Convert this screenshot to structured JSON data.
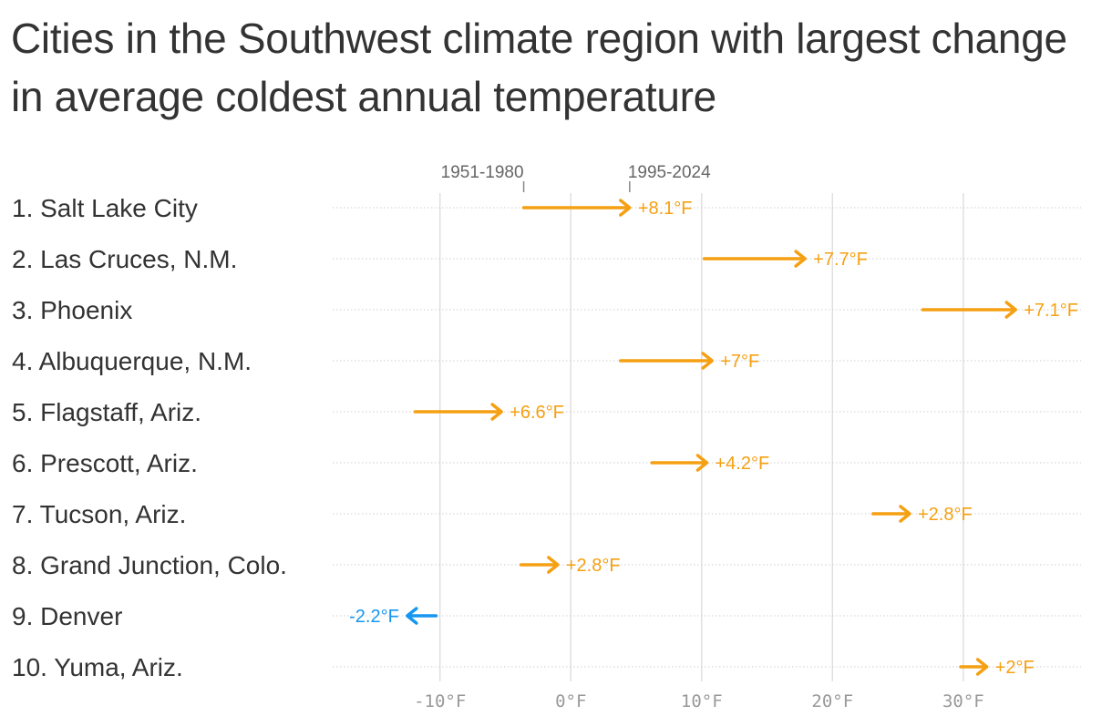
{
  "title": "Cities in the Southwest climate region with largest change in average coldest annual temperature",
  "chart_data": {
    "type": "arrow",
    "title": "Cities in the Southwest climate region with largest change in average coldest annual temperature",
    "period_labels": {
      "start": "1951-1980",
      "end": "1995-2024"
    },
    "x_ticks": [
      -10,
      0,
      10,
      20,
      30
    ],
    "x_tick_labels": [
      "-10°F",
      "0°F",
      "10°F",
      "20°F",
      "30°F"
    ],
    "xlim": [
      -18.2,
      39.0
    ],
    "colors": {
      "warming": "#f5a012",
      "cooling": "#1696f0",
      "grid": "#e0e0e0",
      "text": "#333333",
      "tick": "#999999"
    },
    "rows": [
      {
        "label": "1. Salt Lake City",
        "start": -3.6,
        "end": 4.5,
        "change_label": "+8.1°F"
      },
      {
        "label": "2. Las Cruces, N.M.",
        "start": 10.2,
        "end": 17.9,
        "change_label": "+7.7°F"
      },
      {
        "label": "3. Phoenix",
        "start": 26.9,
        "end": 34.0,
        "change_label": "+7.1°F"
      },
      {
        "label": "4. Albuquerque, N.M.",
        "start": 3.8,
        "end": 10.8,
        "change_label": "+7°F"
      },
      {
        "label": "5. Flagstaff, Ariz.",
        "start": -11.9,
        "end": -5.3,
        "change_label": "+6.6°F"
      },
      {
        "label": "6. Prescott, Ariz.",
        "start": 6.2,
        "end": 10.4,
        "change_label": "+4.2°F"
      },
      {
        "label": "7. Tucson, Ariz.",
        "start": 23.1,
        "end": 25.9,
        "change_label": "+2.8°F"
      },
      {
        "label": "8. Grand Junction, Colo.",
        "start": -3.8,
        "end": -1.0,
        "change_label": "+2.8°F"
      },
      {
        "label": "9. Denver",
        "start": -10.3,
        "end": -12.5,
        "change_label": "-2.2°F"
      },
      {
        "label": "10. Yuma, Ariz.",
        "start": 29.8,
        "end": 31.8,
        "change_label": "+2°F"
      }
    ]
  }
}
